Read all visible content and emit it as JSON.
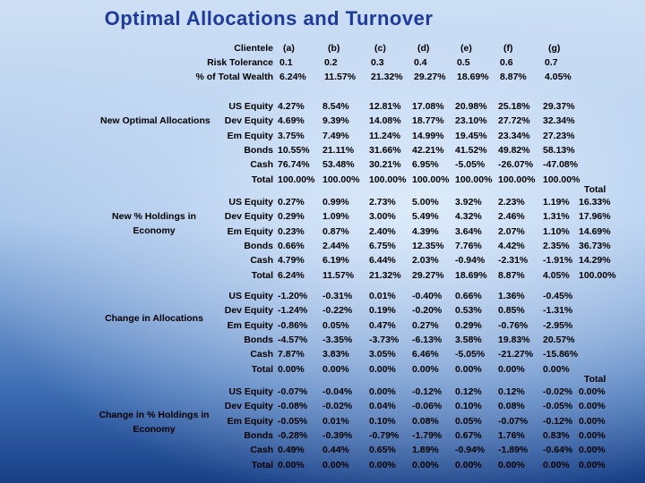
{
  "title": "Optimal Allocations and Turnover",
  "cols": [
    "(a)",
    "(b)",
    "(c)",
    "(d)",
    "(e)",
    "(f)",
    "(g)"
  ],
  "header_rows": [
    {
      "label": "Clientele",
      "values": [
        "(a)",
        "(b)",
        "(c)",
        "(d)",
        "(e)",
        "(f)",
        "(g)"
      ]
    },
    {
      "label": "Risk Tolerance",
      "values": [
        "0.1",
        "0.2",
        "0.3",
        "0.4",
        "0.5",
        "0.6",
        "0.7"
      ]
    },
    {
      "label": "% of Total Wealth",
      "values": [
        "6.24%",
        "11.57%",
        "21.32%",
        "29.27%",
        "18.69%",
        "8.87%",
        "4.05%"
      ]
    }
  ],
  "row_labels": [
    "US Equity",
    "Dev Equity",
    "Em Equity",
    "Bonds",
    "Cash",
    "Total"
  ],
  "total_header": "Total",
  "groups": [
    {
      "name": "New Optimal Allocations",
      "rows": [
        {
          "label": "US Equity",
          "values": [
            "4.27%",
            "8.54%",
            "12.81%",
            "17.08%",
            "20.98%",
            "25.18%",
            "29.37%"
          ]
        },
        {
          "label": "Dev Equity",
          "values": [
            "4.69%",
            "9.39%",
            "14.08%",
            "18.77%",
            "23.10%",
            "27.72%",
            "32.34%"
          ]
        },
        {
          "label": "Em Equity",
          "values": [
            "3.75%",
            "7.49%",
            "11.24%",
            "14.99%",
            "19.45%",
            "23.34%",
            "27.23%"
          ]
        },
        {
          "label": "Bonds",
          "values": [
            "10.55%",
            "21.11%",
            "31.66%",
            "42.21%",
            "41.52%",
            "49.82%",
            "58.13%"
          ]
        },
        {
          "label": "Cash",
          "values": [
            "76.74%",
            "53.48%",
            "30.21%",
            "6.95%",
            "-5.05%",
            "-26.07%",
            "-47.08%"
          ]
        },
        {
          "label": "Total",
          "values": [
            "100.00%",
            "100.00%",
            "100.00%",
            "100.00%",
            "100.00%",
            "100.00%",
            "100.00%"
          ]
        }
      ]
    },
    {
      "name": "New % Holdings in Economy",
      "rows": [
        {
          "label": "US Equity",
          "values": [
            "0.27%",
            "0.99%",
            "2.73%",
            "5.00%",
            "3.92%",
            "2.23%",
            "1.19%"
          ],
          "total": "16.33%"
        },
        {
          "label": "Dev Equity",
          "values": [
            "0.29%",
            "1.09%",
            "3.00%",
            "5.49%",
            "4.32%",
            "2.46%",
            "1.31%"
          ],
          "total": "17.96%"
        },
        {
          "label": "Em Equity",
          "values": [
            "0.23%",
            "0.87%",
            "2.40%",
            "4.39%",
            "3.64%",
            "2.07%",
            "1.10%"
          ],
          "total": "14.69%"
        },
        {
          "label": "Bonds",
          "values": [
            "0.66%",
            "2.44%",
            "6.75%",
            "12.35%",
            "7.76%",
            "4.42%",
            "2.35%"
          ],
          "total": "36.73%"
        },
        {
          "label": "Cash",
          "values": [
            "4.79%",
            "6.19%",
            "6.44%",
            "2.03%",
            "-0.94%",
            "-2.31%",
            "-1.91%"
          ],
          "total": "14.29%"
        },
        {
          "label": "Total",
          "values": [
            "6.24%",
            "11.57%",
            "21.32%",
            "29.27%",
            "18.69%",
            "8.87%",
            "4.05%"
          ],
          "total": "100.00%"
        }
      ]
    },
    {
      "name": "Change in Allocations",
      "rows": [
        {
          "label": "US Equity",
          "values": [
            "-1.20%",
            "-0.31%",
            "0.01%",
            "-0.40%",
            "0.66%",
            "1.36%",
            "-0.45%"
          ]
        },
        {
          "label": "Dev Equity",
          "values": [
            "-1.24%",
            "-0.22%",
            "0.19%",
            "-0.20%",
            "0.53%",
            "0.85%",
            "-1.31%"
          ]
        },
        {
          "label": "Em Equity",
          "values": [
            "-0.86%",
            "0.05%",
            "0.47%",
            "0.27%",
            "0.29%",
            "-0.76%",
            "-2.95%"
          ]
        },
        {
          "label": "Bonds",
          "values": [
            "-4.57%",
            "-3.35%",
            "-3.73%",
            "-6.13%",
            "3.58%",
            "19.83%",
            "20.57%"
          ]
        },
        {
          "label": "Cash",
          "values": [
            "7.87%",
            "3.83%",
            "3.05%",
            "6.46%",
            "-5.05%",
            "-21.27%",
            "-15.86%"
          ]
        },
        {
          "label": "Total",
          "values": [
            "0.00%",
            "0.00%",
            "0.00%",
            "0.00%",
            "0.00%",
            "0.00%",
            "0.00%"
          ]
        }
      ]
    },
    {
      "name": "Change in % Holdings in Economy",
      "rows": [
        {
          "label": "US Equity",
          "values": [
            "-0.07%",
            "-0.04%",
            "0.00%",
            "-0.12%",
            "0.12%",
            "0.12%",
            "-0.02%"
          ],
          "total": "0.00%"
        },
        {
          "label": "Dev Equity",
          "values": [
            "-0.08%",
            "-0.02%",
            "0.04%",
            "-0.06%",
            "0.10%",
            "0.08%",
            "-0.05%"
          ],
          "total": "0.00%"
        },
        {
          "label": "Em Equity",
          "values": [
            "-0.05%",
            "0.01%",
            "0.10%",
            "0.08%",
            "0.05%",
            "-0.07%",
            "-0.12%"
          ],
          "total": "0.00%"
        },
        {
          "label": "Bonds",
          "values": [
            "-0.28%",
            "-0.39%",
            "-0.79%",
            "-1.79%",
            "0.67%",
            "1.76%",
            "0.83%"
          ],
          "total": "0.00%"
        },
        {
          "label": "Cash",
          "values": [
            "0.49%",
            "0.44%",
            "0.65%",
            "1.89%",
            "-0.94%",
            "-1.89%",
            "-0.64%"
          ],
          "total": "0.00%"
        },
        {
          "label": "Total",
          "values": [
            "0.00%",
            "0.00%",
            "0.00%",
            "0.00%",
            "0.00%",
            "0.00%",
            "0.00%"
          ],
          "total": "0.00%"
        }
      ]
    }
  ]
}
